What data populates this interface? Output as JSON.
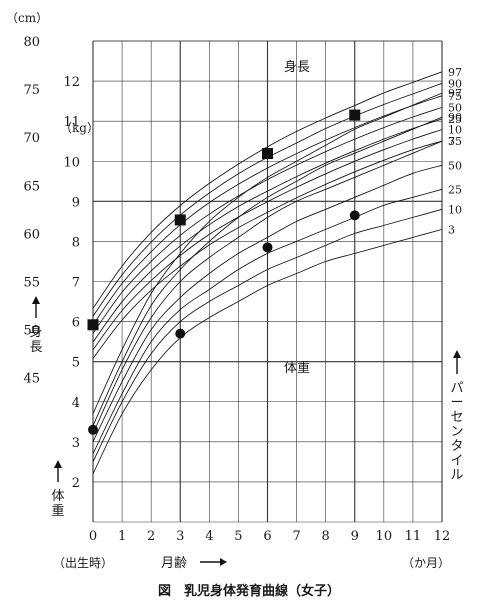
{
  "chart_data": {
    "type": "line",
    "title": "図　乳児身体発育曲線（女子）",
    "x_axis": {
      "label": "月齢",
      "unit": "（か月）",
      "origin_note": "（出生時）",
      "range": [
        0,
        12
      ],
      "ticks": [
        0,
        1,
        2,
        3,
        4,
        5,
        6,
        7,
        8,
        9,
        10,
        11,
        12
      ]
    },
    "height_axis": {
      "label": "身長",
      "unit": "（cm）",
      "range": [
        30,
        80
      ],
      "ticks": [
        45,
        50,
        55,
        60,
        65,
        70,
        75,
        80
      ]
    },
    "weight_axis": {
      "label": "体重",
      "unit": "（kg）",
      "range": [
        1,
        13
      ],
      "ticks": [
        2,
        3,
        4,
        5,
        6,
        7,
        8,
        9,
        10,
        11,
        12
      ]
    },
    "percentile_axis_label": "パーセンタイル",
    "grid": true,
    "height_group": {
      "label": "身長",
      "x": [
        0,
        1,
        2,
        3,
        4,
        5,
        6,
        7,
        8,
        9,
        10,
        11,
        12
      ],
      "series": [
        {
          "name": "97",
          "values": [
            52.2,
            56.6,
            60.1,
            62.9,
            65.2,
            67.2,
            69.0,
            70.6,
            72.0,
            73.3,
            74.6,
            75.7,
            76.8
          ]
        },
        {
          "name": "90",
          "values": [
            51.4,
            55.7,
            59.1,
            61.9,
            64.2,
            66.2,
            67.9,
            69.4,
            70.9,
            72.2,
            73.4,
            74.5,
            75.6
          ]
        },
        {
          "name": "75",
          "values": [
            50.5,
            54.8,
            58.1,
            60.9,
            63.2,
            65.1,
            66.8,
            68.3,
            69.7,
            71.0,
            72.2,
            73.3,
            74.3
          ]
        },
        {
          "name": "50",
          "values": [
            49.6,
            53.9,
            57.1,
            59.8,
            62.0,
            63.9,
            65.6,
            67.1,
            68.5,
            69.8,
            71.0,
            72.1,
            73.1
          ]
        },
        {
          "name": "25",
          "values": [
            48.7,
            52.9,
            56.1,
            58.7,
            60.9,
            62.8,
            64.4,
            65.9,
            67.3,
            68.6,
            69.8,
            70.9,
            71.9
          ]
        },
        {
          "name": "10",
          "values": [
            47.9,
            52.0,
            55.1,
            57.7,
            59.9,
            61.7,
            63.3,
            64.8,
            66.2,
            67.5,
            68.7,
            69.8,
            70.8
          ]
        },
        {
          "name": "3",
          "values": [
            47.0,
            51.0,
            54.1,
            56.6,
            58.8,
            60.6,
            62.2,
            63.7,
            65.1,
            66.4,
            67.6,
            68.7,
            69.6
          ]
        }
      ],
      "points": [
        {
          "x": 0,
          "y": 50.5
        },
        {
          "x": 3,
          "y": 61.4
        },
        {
          "x": 6,
          "y": 68.3
        },
        {
          "x": 9,
          "y": 72.3
        }
      ]
    },
    "weight_group": {
      "label": "体重",
      "x": [
        0,
        1,
        2,
        3,
        4,
        5,
        6,
        7,
        8,
        9,
        10,
        11,
        12
      ],
      "series": [
        {
          "name": "97",
          "values": [
            3.7,
            5.3,
            6.7,
            7.7,
            8.5,
            9.1,
            9.6,
            10.0,
            10.4,
            10.8,
            11.1,
            11.4,
            11.7
          ]
        },
        {
          "name": "90",
          "values": [
            3.4,
            5.0,
            6.4,
            7.3,
            8.0,
            8.6,
            9.1,
            9.5,
            9.9,
            10.2,
            10.5,
            10.8,
            11.1
          ]
        },
        {
          "name": "75",
          "values": [
            3.2,
            4.8,
            6.1,
            7.0,
            7.6,
            8.1,
            8.6,
            9.0,
            9.3,
            9.6,
            9.9,
            10.2,
            10.5
          ]
        },
        {
          "name": "50",
          "values": [
            3.0,
            4.5,
            5.8,
            6.6,
            7.2,
            7.7,
            8.1,
            8.5,
            8.8,
            9.1,
            9.4,
            9.7,
            9.9
          ]
        },
        {
          "name": "25",
          "values": [
            2.7,
            4.2,
            5.5,
            6.3,
            6.8,
            7.3,
            7.7,
            8.0,
            8.3,
            8.6,
            8.9,
            9.1,
            9.3
          ]
        },
        {
          "name": "10",
          "values": [
            2.5,
            4.0,
            5.2,
            6.0,
            6.5,
            6.9,
            7.3,
            7.6,
            7.9,
            8.2,
            8.4,
            8.6,
            8.8
          ]
        },
        {
          "name": "3",
          "values": [
            2.2,
            3.7,
            4.8,
            5.6,
            6.1,
            6.5,
            6.9,
            7.2,
            7.5,
            7.7,
            7.9,
            8.1,
            8.3
          ]
        }
      ],
      "points": [
        {
          "x": 0,
          "y": 3.3
        },
        {
          "x": 3,
          "y": 5.7
        },
        {
          "x": 6,
          "y": 7.85
        },
        {
          "x": 9,
          "y": 8.65
        }
      ]
    }
  }
}
